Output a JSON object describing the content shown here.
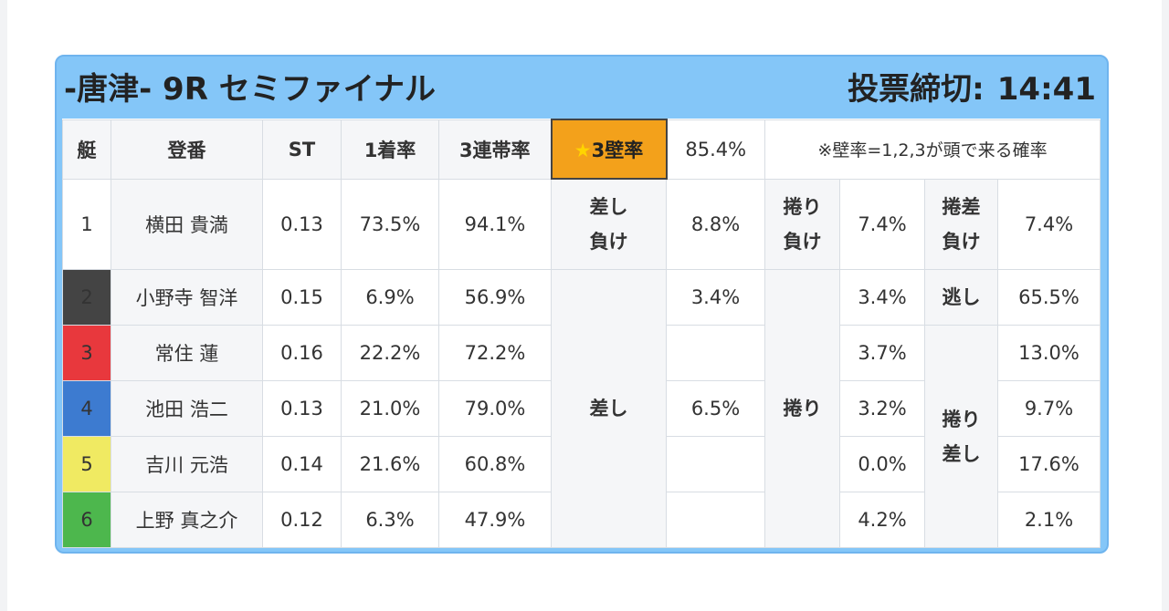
{
  "header": {
    "title": "-唐津- 9R セミファイナル",
    "deadline_label": "投票締切:",
    "deadline_time": "14:41"
  },
  "columns": {
    "boat": "艇",
    "name": "登番",
    "st": "ST",
    "first_rate": "1着率",
    "trio_rate": "3連帯率"
  },
  "stat": {
    "star": "★",
    "label": "3壁率",
    "value": "85.4%",
    "note": "※壁率=1,2,3が頭で来る確率"
  },
  "rows": [
    {
      "boat": "1",
      "name": "横田 貴満",
      "st": "0.13",
      "first": "73.5%",
      "trio": "94.1%"
    },
    {
      "boat": "2",
      "name": "小野寺 智洋",
      "st": "0.15",
      "first": "6.9%",
      "trio": "56.9%"
    },
    {
      "boat": "3",
      "name": "常住 蓮",
      "st": "0.16",
      "first": "22.2%",
      "trio": "72.2%"
    },
    {
      "boat": "4",
      "name": "池田 浩二",
      "st": "0.13",
      "first": "21.0%",
      "trio": "79.0%"
    },
    {
      "boat": "5",
      "name": "吉川 元浩",
      "st": "0.14",
      "first": "21.6%",
      "trio": "60.8%"
    },
    {
      "boat": "6",
      "name": "上野 真之介",
      "st": "0.12",
      "first": "6.3%",
      "trio": "47.9%"
    }
  ],
  "outcomes": {
    "sashi_make": {
      "line1": "差し",
      "line2": "負け",
      "value": "8.8%"
    },
    "makuri_make": {
      "line1": "捲り",
      "line2": "負け",
      "value": "7.4%"
    },
    "makurizashi_make": {
      "line1": "捲差",
      "line2": "負け",
      "value": "7.4%"
    },
    "sashi": {
      "label": "差し",
      "values": [
        "3.4%",
        "",
        "6.5%",
        "",
        ""
      ]
    },
    "makuri": {
      "label": "捲り",
      "values": [
        "3.4%",
        "3.7%",
        "3.2%",
        "0.0%",
        "4.2%"
      ]
    },
    "nige": {
      "label": "逃し",
      "value": "65.5%"
    },
    "makurizashi": {
      "line1": "捲り",
      "line2": "差し",
      "values": [
        "13.0%",
        "9.7%",
        "17.6%",
        "2.1%"
      ]
    }
  },
  "colors": {
    "panel": "#84c6f8",
    "highlight": "#f3a11b",
    "boat1": "#ffffff",
    "boat2": "#444444",
    "boat3": "#e8383d",
    "boat4": "#3d7bd0",
    "boat5": "#f0ea62",
    "boat6": "#4db74d"
  }
}
